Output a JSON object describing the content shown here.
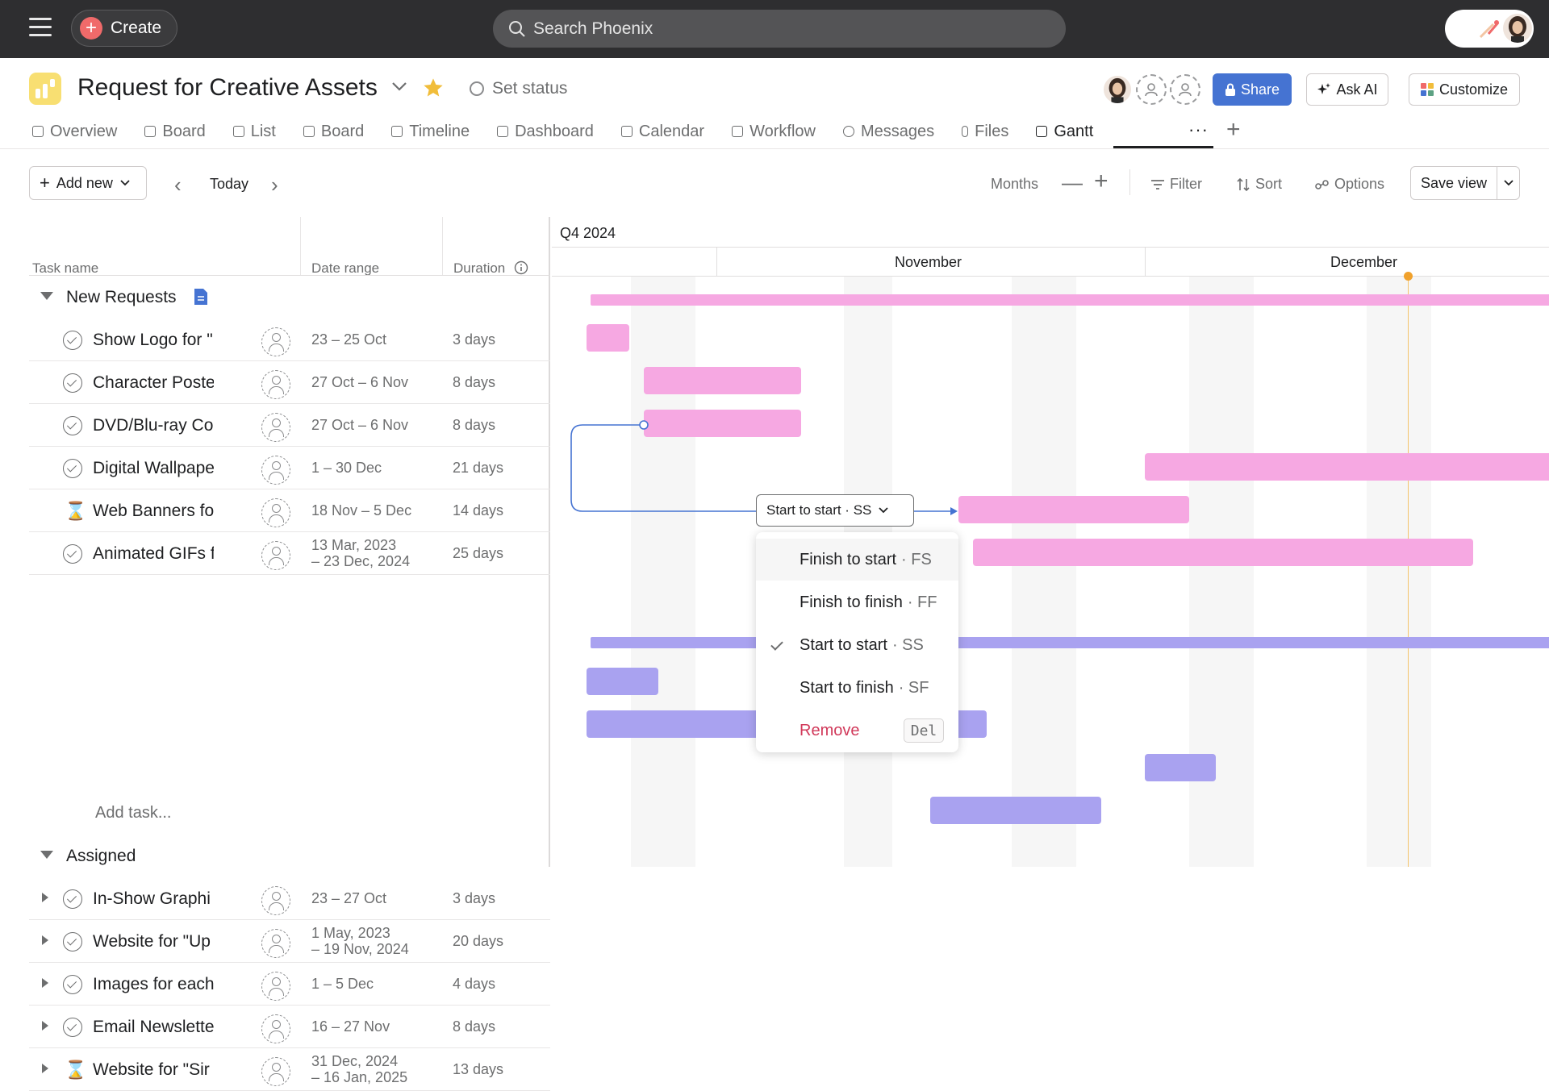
{
  "topbar": {
    "create_label": "Create",
    "search_placeholder": "Search Phoenix"
  },
  "project": {
    "title": "Request for Creative Assets",
    "set_status": "Set status"
  },
  "header_buttons": {
    "share": "Share",
    "ask_ai": "Ask AI",
    "customize": "Customize"
  },
  "tabs": [
    "Overview",
    "Board",
    "List",
    "Board",
    "Timeline",
    "Dashboard",
    "Calendar",
    "Workflow",
    "Messages",
    "Files",
    "Gantt"
  ],
  "active_tab": "Gantt",
  "toolbar": {
    "add_new": "Add new",
    "today": "Today",
    "months": "Months",
    "filter": "Filter",
    "sort": "Sort",
    "options": "Options",
    "save_view": "Save view"
  },
  "columns": {
    "task_name": "Task name",
    "date_range": "Date range",
    "duration": "Duration"
  },
  "sections": [
    {
      "name": "New Requests",
      "tasks": [
        {
          "name": "Show Logo for \"",
          "dates": [
            "23 – 25 Oct"
          ],
          "duration": "3 days",
          "icon": "check-icon"
        },
        {
          "name": "Character Poste",
          "dates": [
            "27 Oct – 6 Nov"
          ],
          "duration": "8 days",
          "icon": "check-icon"
        },
        {
          "name": "DVD/Blu-ray Co",
          "dates": [
            "27 Oct – 6 Nov"
          ],
          "duration": "8 days",
          "icon": "check-icon"
        },
        {
          "name": "Digital Wallpape",
          "dates": [
            "1 – 30 Dec"
          ],
          "duration": "21 days",
          "icon": "check-icon"
        },
        {
          "name": "Web Banners fo",
          "dates": [
            "18 Nov – 5 Dec"
          ],
          "duration": "14 days",
          "icon": "hourglass-icon"
        },
        {
          "name": "Animated GIFs f",
          "dates": [
            "13 Mar, 2023",
            "– 23 Dec, 2024"
          ],
          "duration": "25 days",
          "icon": "check-icon"
        }
      ],
      "add_task": "Add task..."
    },
    {
      "name": "Assigned",
      "tasks": [
        {
          "name": "In-Show Graphi",
          "dates": [
            "23 – 27 Oct"
          ],
          "duration": "3 days",
          "icon": "check-icon"
        },
        {
          "name": "Website for \"Up",
          "dates": [
            "1 May, 2023",
            "– 19 Nov, 2024"
          ],
          "duration": "20 days",
          "icon": "check-icon"
        },
        {
          "name": "Images for each",
          "dates": [
            "1 – 5 Dec"
          ],
          "duration": "4 days",
          "icon": "check-icon"
        },
        {
          "name": "Email Newslette",
          "dates": [
            "16 – 27 Nov"
          ],
          "duration": "8 days",
          "icon": "check-icon"
        },
        {
          "name": "Website for \"Sir",
          "dates": [
            "31 Dec, 2024",
            "– 16 Jan, 2025"
          ],
          "duration": "13 days",
          "icon": "hourglass-icon"
        }
      ]
    }
  ],
  "gantt": {
    "quarter": "Q4 2024",
    "months": [
      "November",
      "December"
    ]
  },
  "dependency": {
    "selected": "Start to start · SS",
    "options": [
      {
        "label": "Finish to start",
        "abbr": "· FS"
      },
      {
        "label": "Finish to finish",
        "abbr": "· FF"
      },
      {
        "label": "Start to start",
        "abbr": "· SS"
      },
      {
        "label": "Start to finish",
        "abbr": "· SF"
      }
    ],
    "remove": "Remove",
    "remove_key": "Del"
  },
  "colors": {
    "pink_bar": "#f6a8e2",
    "purple_bar": "#a9a2f0",
    "share": "#4573d2",
    "remove": "#d1395a",
    "today_marker": "#f0a12c"
  }
}
